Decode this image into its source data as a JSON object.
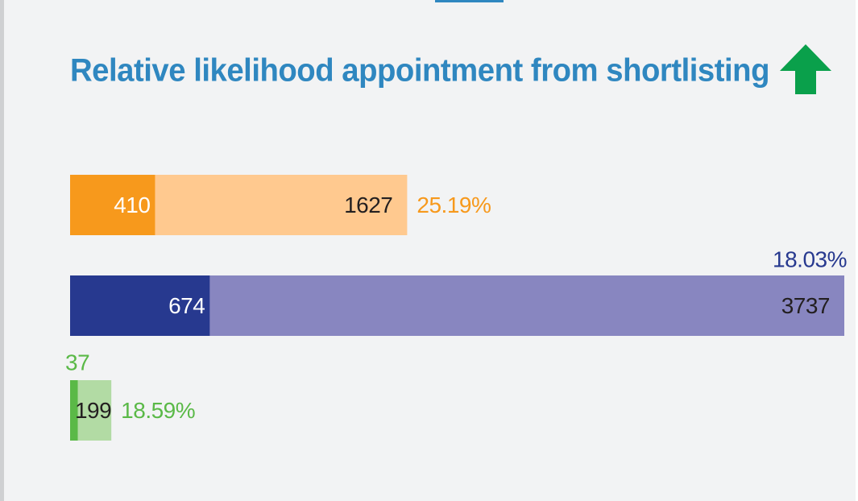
{
  "chart_data": {
    "type": "bar",
    "title": "Relative likelihood appointment from shortlisting",
    "rows": [
      {
        "appointed": 410,
        "shortlisted": 1627,
        "rate": 25.19,
        "rate_label": "25.19%",
        "dark": "#f7991c",
        "light": "#ffc98f",
        "accent": "#f7991c"
      },
      {
        "appointed": 674,
        "shortlisted": 3737,
        "rate": 18.03,
        "rate_label": "18.03%",
        "dark": "#27398f",
        "light": "#8886c0",
        "accent": "#27398f"
      },
      {
        "appointed": 37,
        "shortlisted": 199,
        "rate": 18.59,
        "rate_label": "18.59%",
        "dark": "#5ab947",
        "light": "#b2dba4",
        "accent": "#5ab947"
      }
    ]
  }
}
